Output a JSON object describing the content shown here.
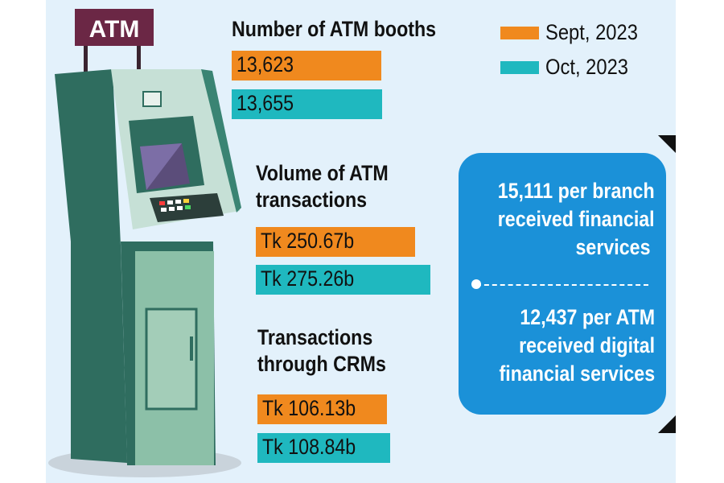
{
  "sign": {
    "text": "ATM"
  },
  "colors": {
    "sept": "#f0891e",
    "oct": "#1fb8bf",
    "box": "#1b91d8"
  },
  "legend": [
    {
      "label": "Sept, 2023",
      "color": "#f0891e"
    },
    {
      "label": "Oct, 2023",
      "color": "#1fb8bf"
    }
  ],
  "chart_data": [
    {
      "type": "bar",
      "title": "Number of ATM booths",
      "series": [
        {
          "name": "Sept, 2023",
          "value": 13623,
          "label": "13,623"
        },
        {
          "name": "Oct, 2023",
          "value": 13655,
          "label": "13,655"
        }
      ]
    },
    {
      "type": "bar",
      "title": "Volume of ATM transactions",
      "unit": "Tk billion",
      "series": [
        {
          "name": "Sept, 2023",
          "value": 250.67,
          "label": "Tk 250.67b"
        },
        {
          "name": "Oct, 2023",
          "value": 275.26,
          "label": "Tk 275.26b"
        }
      ]
    },
    {
      "type": "bar",
      "title": "Transactions through CRMs",
      "unit": "Tk billion",
      "series": [
        {
          "name": "Sept, 2023",
          "value": 106.13,
          "label": "Tk 106.13b"
        },
        {
          "name": "Oct, 2023",
          "value": 108.84,
          "label": "Tk 108.84b"
        }
      ]
    }
  ],
  "info": {
    "branch": [
      "15,111 per branch",
      "received financial",
      "services"
    ],
    "atm": [
      "12,437 per ATM",
      "received digital",
      "financial services"
    ]
  }
}
